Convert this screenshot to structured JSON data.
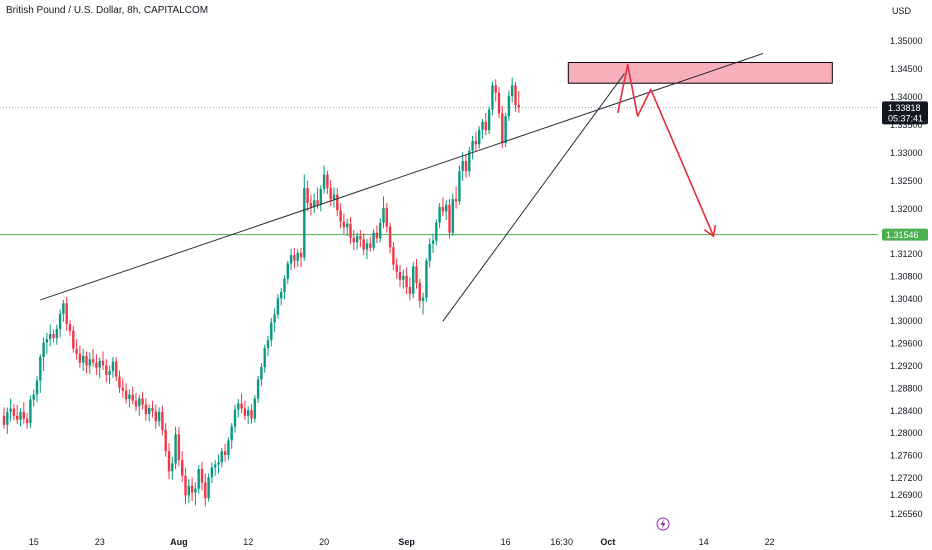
{
  "header": {
    "symbol_title": "British Pound / U.S. Dollar, 8h, CAPITALCOM",
    "currency": "USD"
  },
  "colors": {
    "up": "#089981",
    "down": "#f23645",
    "support_line": "#4caf50",
    "resistance_box_fill": "#f7a1ad",
    "projection": "#e52d3c",
    "trendline": "#2a2e39",
    "grid_text": "#131722",
    "event_icon": "#9c27b0"
  },
  "chart_data": {
    "type": "candlestick",
    "title": "British Pound / U.S. Dollar, 8h, CAPITALCOM",
    "ylim": [
      1.2645,
      1.3545
    ],
    "y_ticks": [
      "1.35000",
      "1.34500",
      "1.34000",
      "1.33500",
      "1.33000",
      "1.32500",
      "1.32000",
      "1.31200",
      "1.30800",
      "1.30400",
      "1.30000",
      "1.29600",
      "1.29200",
      "1.28800",
      "1.28400",
      "1.28000",
      "1.27600",
      "1.27200",
      "1.26900",
      "1.26560"
    ],
    "x_ticks": [
      {
        "label": "15",
        "bar": 9
      },
      {
        "label": "23",
        "bar": 29
      },
      {
        "label": "Aug",
        "bar": 53
      },
      {
        "label": "12",
        "bar": 74
      },
      {
        "label": "20",
        "bar": 97
      },
      {
        "label": "Sep",
        "bar": 122
      },
      {
        "label": "16",
        "bar": 152
      },
      {
        "label": "16:30",
        "bar": 169
      },
      {
        "label": "Oct",
        "bar": 183
      },
      {
        "label": "14",
        "bar": 212
      },
      {
        "label": "22",
        "bar": 232
      }
    ],
    "candles": [
      [
        1.2831,
        1.2846,
        1.2808,
        1.2815
      ],
      [
        1.2815,
        1.2846,
        1.2799,
        1.2838
      ],
      [
        1.2838,
        1.2862,
        1.282,
        1.2844
      ],
      [
        1.2844,
        1.2852,
        1.2823,
        1.2831
      ],
      [
        1.2831,
        1.285,
        1.2816,
        1.2824
      ],
      [
        1.2824,
        1.2844,
        1.2812,
        1.2838
      ],
      [
        1.2838,
        1.2856,
        1.2817,
        1.2826
      ],
      [
        1.2826,
        1.2836,
        1.2808,
        1.2818
      ],
      [
        1.2818,
        1.2867,
        1.2809,
        1.286
      ],
      [
        1.286,
        1.2878,
        1.2848,
        1.2869
      ],
      [
        1.2869,
        1.2902,
        1.2856,
        1.2894
      ],
      [
        1.2894,
        1.2941,
        1.2872,
        1.2936
      ],
      [
        1.2936,
        1.2971,
        1.2911,
        1.2962
      ],
      [
        1.2962,
        1.2979,
        1.2942,
        1.2968
      ],
      [
        1.2968,
        1.2994,
        1.2955,
        1.2977
      ],
      [
        1.2977,
        1.2985,
        1.2962,
        1.297
      ],
      [
        1.297,
        1.2994,
        1.2958,
        1.2986
      ],
      [
        1.2986,
        1.3021,
        1.2971,
        1.3013
      ],
      [
        1.3013,
        1.3038,
        1.2999,
        1.3032
      ],
      [
        1.3032,
        1.3043,
        1.2983,
        1.2995
      ],
      [
        1.2995,
        1.3002,
        1.2974,
        1.2983
      ],
      [
        1.2983,
        1.2991,
        1.2944,
        1.2951
      ],
      [
        1.2951,
        1.2968,
        1.2931,
        1.2942
      ],
      [
        1.2942,
        1.2956,
        1.2917,
        1.2926
      ],
      [
        1.2926,
        1.2951,
        1.2911,
        1.2938
      ],
      [
        1.2938,
        1.2946,
        1.2907,
        1.2921
      ],
      [
        1.2921,
        1.2944,
        1.2906,
        1.2932
      ],
      [
        1.2932,
        1.2951,
        1.2919,
        1.2926
      ],
      [
        1.2926,
        1.2941,
        1.2904,
        1.2917
      ],
      [
        1.2917,
        1.2935,
        1.2898,
        1.2929
      ],
      [
        1.2929,
        1.2946,
        1.2913,
        1.2921
      ],
      [
        1.2921,
        1.2932,
        1.2891,
        1.2904
      ],
      [
        1.2904,
        1.2921,
        1.2888,
        1.2911
      ],
      [
        1.2911,
        1.2936,
        1.2899,
        1.2928
      ],
      [
        1.2928,
        1.2936,
        1.2893,
        1.2901
      ],
      [
        1.2901,
        1.2912,
        1.2872,
        1.2881
      ],
      [
        1.2881,
        1.2898,
        1.2864,
        1.2876
      ],
      [
        1.2876,
        1.2889,
        1.2853,
        1.2861
      ],
      [
        1.2861,
        1.2878,
        1.2846,
        1.2869
      ],
      [
        1.2869,
        1.2883,
        1.2851,
        1.2858
      ],
      [
        1.2858,
        1.2872,
        1.2839,
        1.2848
      ],
      [
        1.2848,
        1.2868,
        1.2831,
        1.2862
      ],
      [
        1.2862,
        1.2874,
        1.2842,
        1.2851
      ],
      [
        1.2851,
        1.2863,
        1.2822,
        1.2834
      ],
      [
        1.2834,
        1.2851,
        1.2821,
        1.2845
      ],
      [
        1.2845,
        1.2858,
        1.2828,
        1.2839
      ],
      [
        1.2839,
        1.2851,
        1.2808,
        1.2821
      ],
      [
        1.2821,
        1.2846,
        1.2812,
        1.2838
      ],
      [
        1.2838,
        1.2849,
        1.2796,
        1.2806
      ],
      [
        1.2806,
        1.2818,
        1.2758,
        1.2768
      ],
      [
        1.2768,
        1.2782,
        1.2718,
        1.2732
      ],
      [
        1.2732,
        1.2758,
        1.2717,
        1.2746
      ],
      [
        1.2746,
        1.2812,
        1.2736,
        1.2798
      ],
      [
        1.2798,
        1.2811,
        1.2741,
        1.2752
      ],
      [
        1.2752,
        1.2768,
        1.2713,
        1.2724
      ],
      [
        1.2724,
        1.2738,
        1.2673,
        1.2689
      ],
      [
        1.2689,
        1.2718,
        1.2675,
        1.2706
      ],
      [
        1.2706,
        1.2721,
        1.2679,
        1.2694
      ],
      [
        1.2694,
        1.2712,
        1.2671,
        1.2701
      ],
      [
        1.2701,
        1.2743,
        1.2692,
        1.2736
      ],
      [
        1.2736,
        1.2749,
        1.2698,
        1.2712
      ],
      [
        1.2712,
        1.2728,
        1.2669,
        1.2684
      ],
      [
        1.2684,
        1.2728,
        1.2678,
        1.2721
      ],
      [
        1.2721,
        1.2748,
        1.2711,
        1.2739
      ],
      [
        1.2739,
        1.2752,
        1.2724,
        1.2744
      ],
      [
        1.2744,
        1.2762,
        1.2728,
        1.2748
      ],
      [
        1.2748,
        1.2774,
        1.2739,
        1.2768
      ],
      [
        1.2768,
        1.2781,
        1.2749,
        1.2761
      ],
      [
        1.2761,
        1.2793,
        1.2752,
        1.2787
      ],
      [
        1.2787,
        1.2818,
        1.2772,
        1.2812
      ],
      [
        1.2812,
        1.2851,
        1.2801,
        1.2842
      ],
      [
        1.2842,
        1.2861,
        1.2828,
        1.2853
      ],
      [
        1.2853,
        1.2871,
        1.2836,
        1.2844
      ],
      [
        1.2844,
        1.2858,
        1.2824,
        1.2831
      ],
      [
        1.2831,
        1.2848,
        1.2816,
        1.2841
      ],
      [
        1.2841,
        1.2852,
        1.2817,
        1.2826
      ],
      [
        1.2826,
        1.2868,
        1.2819,
        1.2862
      ],
      [
        1.2862,
        1.2902,
        1.2854,
        1.2896
      ],
      [
        1.2896,
        1.2925,
        1.2884,
        1.2918
      ],
      [
        1.2918,
        1.2958,
        1.2908,
        1.2952
      ],
      [
        1.2952,
        1.2974,
        1.2938,
        1.2966
      ],
      [
        1.2966,
        1.3006,
        1.2955,
        1.2998
      ],
      [
        1.2998,
        1.3023,
        1.2981,
        1.3012
      ],
      [
        1.3012,
        1.3048,
        1.3004,
        1.3041
      ],
      [
        1.3041,
        1.3059,
        1.3028,
        1.3052
      ],
      [
        1.3052,
        1.3082,
        1.3039,
        1.3076
      ],
      [
        1.3076,
        1.3108,
        1.3066,
        1.3103
      ],
      [
        1.3103,
        1.3129,
        1.3091,
        1.3118
      ],
      [
        1.3118,
        1.3131,
        1.3094,
        1.3108
      ],
      [
        1.3108,
        1.3128,
        1.3097,
        1.3122
      ],
      [
        1.3122,
        1.3131,
        1.3096,
        1.3114
      ],
      [
        1.3114,
        1.3262,
        1.3108,
        1.3238
      ],
      [
        1.3238,
        1.3251,
        1.3196,
        1.3211
      ],
      [
        1.3211,
        1.3226,
        1.3189,
        1.3204
      ],
      [
        1.3204,
        1.3228,
        1.3193,
        1.3216
      ],
      [
        1.3216,
        1.3239,
        1.3201,
        1.3208
      ],
      [
        1.3208,
        1.3243,
        1.3196,
        1.3236
      ],
      [
        1.3236,
        1.3278,
        1.3228,
        1.3262
      ],
      [
        1.3262,
        1.3269,
        1.3227,
        1.3238
      ],
      [
        1.3238,
        1.3252,
        1.3205,
        1.3218
      ],
      [
        1.3218,
        1.3239,
        1.3203,
        1.3226
      ],
      [
        1.3226,
        1.3238,
        1.3188,
        1.3198
      ],
      [
        1.3198,
        1.3211,
        1.3166,
        1.3178
      ],
      [
        1.3178,
        1.3192,
        1.3156,
        1.3168
      ],
      [
        1.3168,
        1.3183,
        1.3152,
        1.3174
      ],
      [
        1.3174,
        1.3186,
        1.3138,
        1.3149
      ],
      [
        1.3149,
        1.3163,
        1.3127,
        1.3141
      ],
      [
        1.3141,
        1.3158,
        1.3128,
        1.3152
      ],
      [
        1.3152,
        1.3163,
        1.3132,
        1.3146
      ],
      [
        1.3146,
        1.3157,
        1.3118,
        1.3128
      ],
      [
        1.3128,
        1.3147,
        1.3111,
        1.3139
      ],
      [
        1.3139,
        1.3151,
        1.3124,
        1.3131
      ],
      [
        1.3131,
        1.3164,
        1.3126,
        1.3158
      ],
      [
        1.3158,
        1.3171,
        1.3139,
        1.3148
      ],
      [
        1.3148,
        1.3184,
        1.3141,
        1.3176
      ],
      [
        1.3176,
        1.3223,
        1.3166,
        1.3202
      ],
      [
        1.3202,
        1.3211,
        1.3158,
        1.3169
      ],
      [
        1.3169,
        1.3176,
        1.3121,
        1.3132
      ],
      [
        1.3132,
        1.3141,
        1.3091,
        1.3101
      ],
      [
        1.3101,
        1.3112,
        1.3076,
        1.3088
      ],
      [
        1.3088,
        1.3101,
        1.3061,
        1.3074
      ],
      [
        1.3074,
        1.3092,
        1.3058,
        1.3081
      ],
      [
        1.3081,
        1.3096,
        1.3048,
        1.3061
      ],
      [
        1.3061,
        1.3078,
        1.3037,
        1.3049
      ],
      [
        1.3049,
        1.3106,
        1.3041,
        1.3098
      ],
      [
        1.3098,
        1.3111,
        1.3058,
        1.3068
      ],
      [
        1.3068,
        1.3076,
        1.3024,
        1.3036
      ],
      [
        1.3036,
        1.3051,
        1.3012,
        1.3042
      ],
      [
        1.3042,
        1.3112,
        1.3034,
        1.3108
      ],
      [
        1.3108,
        1.3148,
        1.3096,
        1.3138
      ],
      [
        1.3138,
        1.3156,
        1.3122,
        1.3144
      ],
      [
        1.3144,
        1.3182,
        1.3135,
        1.3176
      ],
      [
        1.3176,
        1.3211,
        1.3166,
        1.3204
      ],
      [
        1.3204,
        1.3221,
        1.3188,
        1.3196
      ],
      [
        1.3196,
        1.3216,
        1.3181,
        1.3208
      ],
      [
        1.3208,
        1.3218,
        1.3148,
        1.3158
      ],
      [
        1.3158,
        1.3228,
        1.3152,
        1.3218
      ],
      [
        1.3218,
        1.3241,
        1.3201,
        1.3214
      ],
      [
        1.3214,
        1.3278,
        1.3208,
        1.3268
      ],
      [
        1.3268,
        1.3302,
        1.3251,
        1.3286
      ],
      [
        1.3286,
        1.3297,
        1.3256,
        1.3268
      ],
      [
        1.3268,
        1.3311,
        1.3258,
        1.3304
      ],
      [
        1.3304,
        1.3331,
        1.3289,
        1.3322
      ],
      [
        1.3322,
        1.3339,
        1.3304,
        1.3316
      ],
      [
        1.3316,
        1.3348,
        1.3308,
        1.3342
      ],
      [
        1.3342,
        1.3361,
        1.3326,
        1.3356
      ],
      [
        1.3356,
        1.3372,
        1.3332,
        1.3341
      ],
      [
        1.3341,
        1.3383,
        1.3334,
        1.3378
      ],
      [
        1.3378,
        1.3428,
        1.3368,
        1.3421
      ],
      [
        1.3421,
        1.3432,
        1.3392,
        1.3408
      ],
      [
        1.3408,
        1.3418,
        1.3362,
        1.3371
      ],
      [
        1.3371,
        1.3384,
        1.3309,
        1.3318
      ],
      [
        1.3318,
        1.3372,
        1.3311,
        1.3366
      ],
      [
        1.3366,
        1.3412,
        1.3358,
        1.3402
      ],
      [
        1.3402,
        1.3435,
        1.3391,
        1.3421
      ],
      [
        1.3421,
        1.3428,
        1.3374,
        1.3386
      ],
      [
        1.3386,
        1.3411,
        1.3372,
        1.3382
      ]
    ],
    "last_price": "1.33818",
    "countdown": "05:37:41",
    "support_price": "1.31546",
    "annotations": {
      "upper_trendline": [
        [
          11,
          1.3038
        ],
        [
          230,
          1.3478
        ]
      ],
      "lower_trendline": [
        [
          133,
          1.3
        ],
        [
          188,
          1.3442
        ]
      ],
      "resistance_zone": {
        "bar_from": 171,
        "bar_to": 251,
        "price_top": 1.3462,
        "price_bottom": 1.3425
      },
      "support_level": 1.31546,
      "projection_path": [
        [
          186,
          1.3372
        ],
        [
          189,
          1.3458
        ],
        [
          192,
          1.3366
        ],
        [
          196,
          1.3414
        ],
        [
          215,
          1.3152
        ]
      ]
    }
  }
}
